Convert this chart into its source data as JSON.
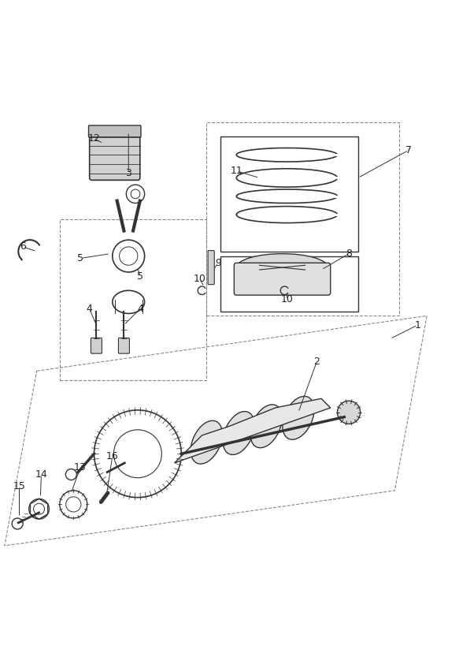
{
  "title": "",
  "background_color": "#ffffff",
  "line_color": "#333333",
  "dashed_line_color": "#888888",
  "label_color": "#222222",
  "label_fontsize": 9,
  "fig_width": 5.83,
  "fig_height": 8.24
}
